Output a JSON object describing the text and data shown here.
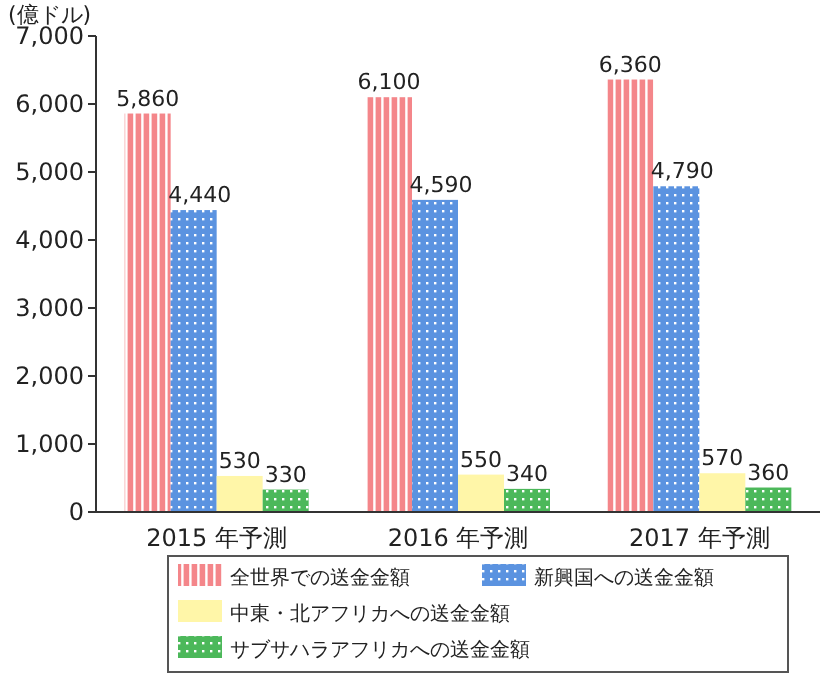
{
  "chart_data": {
    "type": "bar",
    "ylabel": "(億ドル)",
    "categories": [
      "2015 年予測",
      "2016 年予測",
      "2017 年予測"
    ],
    "ylim": [
      0,
      7000
    ],
    "yticks": [
      0,
      {
        "value": 1000,
        "label": "1,000"
      },
      {
        "value": 2000,
        "label": "2,000"
      },
      {
        "value": 3000,
        "label": "3,000"
      },
      {
        "value": 4000,
        "label": "4,000"
      },
      {
        "value": 5000,
        "label": "5,000"
      },
      {
        "value": 6000,
        "label": "6,000"
      },
      {
        "value": 7000,
        "label": "7,000"
      }
    ],
    "grid": false,
    "legend": "bottom",
    "series": [
      {
        "name": "全世界での送金金額",
        "color": "#f4868a",
        "values": [
          5860,
          6100,
          6360
        ],
        "value_labels": [
          "5,860",
          "6,100",
          "6,360"
        ]
      },
      {
        "name": "新興国への送金金額",
        "color": "#5b93e0",
        "values": [
          4440,
          4590,
          4790
        ],
        "value_labels": [
          "4,440",
          "4,590",
          "4,790"
        ]
      },
      {
        "name": "中東・北アフリカへの送金金額",
        "color": "#fff6a8",
        "values": [
          530,
          550,
          570
        ],
        "value_labels": [
          "530",
          "550",
          "570"
        ]
      },
      {
        "name": "サブサハラアフリカへの送金金額",
        "color": "#4cb85a",
        "values": [
          330,
          340,
          360
        ],
        "value_labels": [
          "330",
          "340",
          "360"
        ]
      }
    ]
  }
}
